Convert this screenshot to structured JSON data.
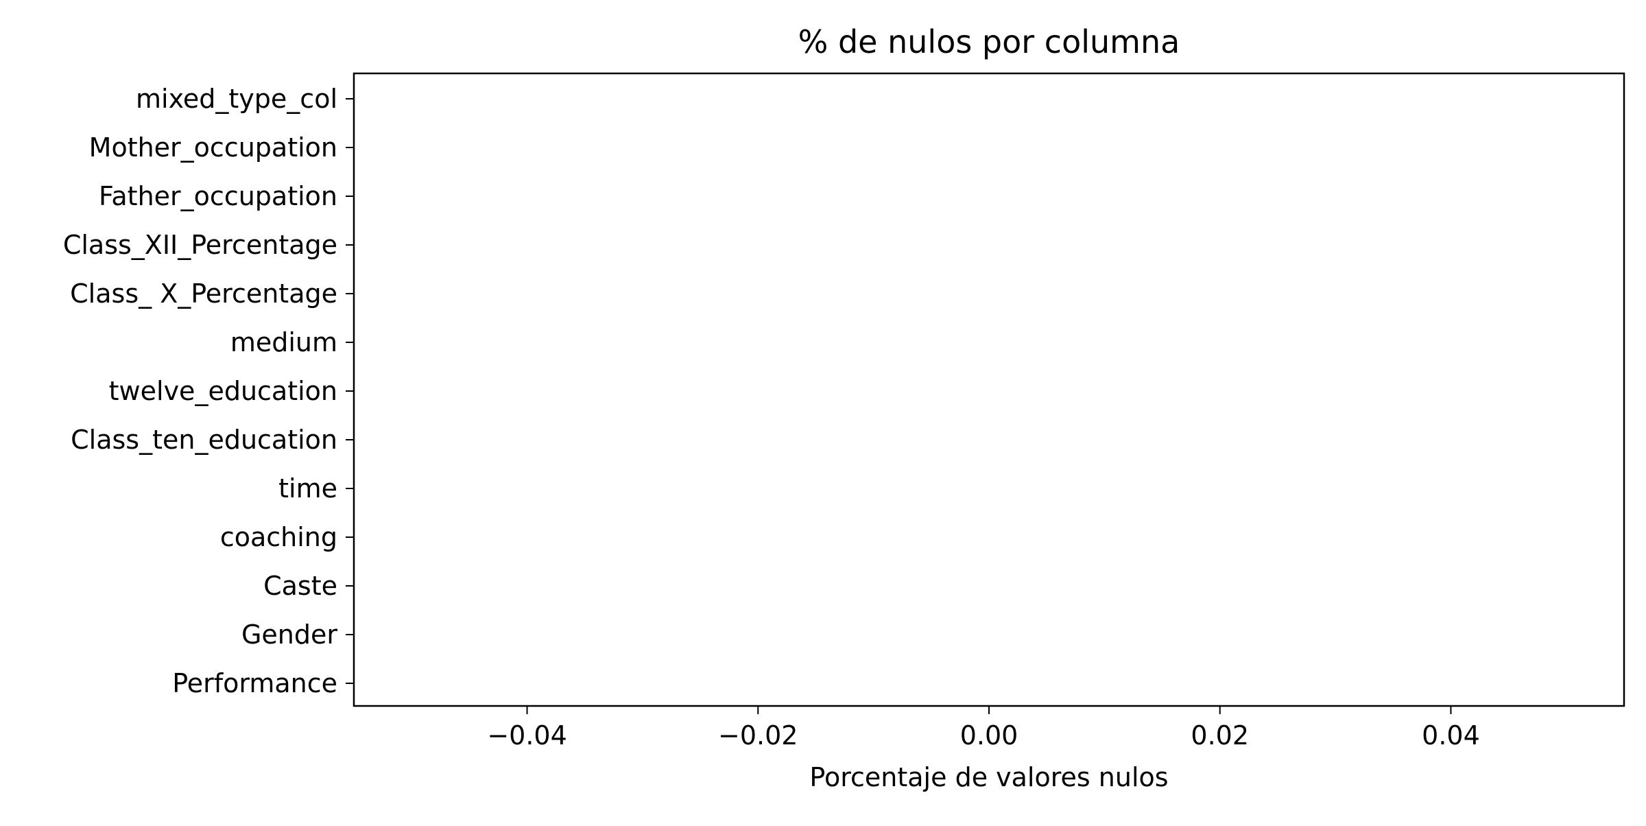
{
  "chart_data": {
    "type": "bar",
    "orientation": "horizontal",
    "title": "% de nulos por columna",
    "xlabel": "Porcentaje de valores nulos",
    "ylabel": "",
    "categories": [
      "mixed_type_col",
      "Mother_occupation",
      "Father_occupation",
      "Class_XII_Percentage",
      "Class_ X_Percentage",
      "medium",
      "twelve_education",
      "Class_ten_education",
      "time",
      "coaching",
      "Caste",
      "Gender",
      "Performance"
    ],
    "values": [
      0,
      0,
      0,
      0,
      0,
      0,
      0,
      0,
      0,
      0,
      0,
      0,
      0
    ],
    "xlim": [
      -0.055,
      0.055
    ],
    "xticks": [
      -0.04,
      -0.02,
      0.0,
      0.02,
      0.04
    ],
    "xtick_labels": [
      "−0.04",
      "−0.02",
      "0.00",
      "0.02",
      "0.04"
    ],
    "grid": false,
    "bar_color": "#1f77b4"
  }
}
